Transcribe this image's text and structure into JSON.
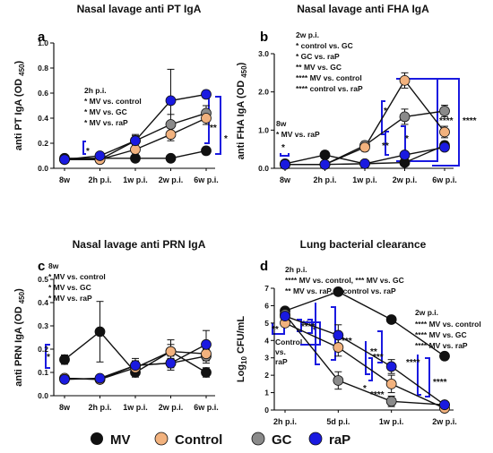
{
  "legend": [
    {
      "name": "MV",
      "color": "#111111"
    },
    {
      "name": "Control",
      "color": "#f2b27e"
    },
    {
      "name": "GC",
      "color": "#8a8a8a"
    },
    {
      "name": "raP",
      "color": "#1a1ae0"
    }
  ],
  "colors": {
    "bracket": "#1a1ae0"
  },
  "chart_data": [
    {
      "type": "line",
      "panel": "a",
      "title": "Nasal lavage anti PT IgA",
      "ylabel": "anti PT IgA (OD 450)",
      "ylim": [
        0,
        1.0
      ],
      "yticks": [
        "0.0",
        "0.2",
        "0.4",
        "0.6",
        "0.8",
        "1.0"
      ],
      "categories": [
        "8w",
        "2h p.i.",
        "1w p.i.",
        "2w p.i.",
        "6w p.i."
      ],
      "series": [
        {
          "name": "MV",
          "values": [
            0.08,
            0.08,
            0.08,
            0.08,
            0.14
          ],
          "err": [
            0.01,
            0.01,
            0.01,
            0.01,
            0.03
          ]
        },
        {
          "name": "Control",
          "values": [
            0.07,
            0.07,
            0.15,
            0.27,
            0.4
          ],
          "err": [
            0.01,
            0.01,
            0.03,
            0.05,
            0.05
          ]
        },
        {
          "name": "GC",
          "values": [
            0.07,
            0.07,
            0.22,
            0.35,
            0.44
          ],
          "err": [
            0.01,
            0.01,
            0.05,
            0.08,
            0.06
          ]
        },
        {
          "name": "raP",
          "values": [
            0.07,
            0.1,
            0.22,
            0.54,
            0.59
          ],
          "err": [
            0.01,
            0.02,
            0.04,
            0.25,
            0.03
          ]
        }
      ],
      "annotations": [
        "2h p.i.",
        "* MV vs. control",
        "* MV vs. GC",
        "* MV vs. raP"
      ],
      "significance": [
        "*",
        "**",
        "*"
      ]
    },
    {
      "type": "line",
      "panel": "b",
      "title": "Nasal lavage anti FHA IgA",
      "ylabel": "anti FHA IgA (OD 450)",
      "ylim": [
        0,
        3.0
      ],
      "yticks": [
        "0.0",
        "1.0",
        "2.0",
        "3.0"
      ],
      "categories": [
        "8w",
        "2h p.i.",
        "1w p.i.",
        "2w p.i.",
        "6w p.i."
      ],
      "series": [
        {
          "name": "MV",
          "values": [
            0.12,
            0.35,
            0.12,
            0.15,
            0.6
          ],
          "err": [
            0.02,
            0.1,
            0.02,
            0.03,
            0.1
          ]
        },
        {
          "name": "Control",
          "values": [
            0.1,
            0.1,
            0.55,
            2.3,
            0.95
          ],
          "err": [
            0.02,
            0.02,
            0.1,
            0.2,
            0.15
          ]
        },
        {
          "name": "GC",
          "values": [
            0.1,
            0.1,
            0.6,
            1.35,
            1.5
          ],
          "err": [
            0.02,
            0.02,
            0.1,
            0.2,
            0.15
          ]
        },
        {
          "name": "raP",
          "values": [
            0.1,
            0.1,
            0.12,
            0.35,
            0.55
          ],
          "err": [
            0.02,
            0.02,
            0.02,
            0.05,
            0.05
          ]
        }
      ],
      "annotations": [
        "2w p.i.",
        "* control vs. GC",
        "* GC vs. raP",
        "** MV vs. GC",
        "**** MV vs. control",
        "**** control vs. raP",
        "8w",
        "* MV vs. raP"
      ],
      "significance": [
        "*",
        "*",
        "**",
        "*",
        "****",
        "****"
      ]
    },
    {
      "type": "line",
      "panel": "c",
      "title": "Nasal lavage anti PRN IgA",
      "ylabel": "anti PRN IgA (OD 450)",
      "ylim": [
        0,
        0.5
      ],
      "yticks": [
        "0.0",
        "0.1",
        "0.2",
        "0.3",
        "0.4",
        "0.5"
      ],
      "categories": [
        "8w",
        "2h p.i.",
        "1w p.i.",
        "2w p.i.",
        "6w p.i."
      ],
      "series": [
        {
          "name": "MV",
          "values": [
            0.155,
            0.275,
            0.1,
            0.19,
            0.1
          ],
          "err": [
            0.02,
            0.13,
            0.02,
            0.05,
            0.02
          ]
        },
        {
          "name": "Control",
          "values": [
            0.075,
            0.07,
            0.12,
            0.19,
            0.18
          ],
          "err": [
            0.01,
            0.01,
            0.03,
            0.03,
            0.03
          ]
        },
        {
          "name": "GC",
          "values": [
            0.075,
            0.07,
            0.13,
            0.14,
            0.17
          ],
          "err": [
            0.01,
            0.01,
            0.03,
            0.03,
            0.03
          ]
        },
        {
          "name": "raP",
          "values": [
            0.07,
            0.075,
            0.13,
            0.14,
            0.22
          ],
          "err": [
            0.01,
            0.01,
            0.02,
            0.02,
            0.06
          ]
        }
      ],
      "annotations": [
        "8w",
        "* MV vs. control",
        "* MV vs. GC",
        "* MV vs. raP"
      ],
      "significance": [
        "*"
      ]
    },
    {
      "type": "line",
      "panel": "d",
      "title": "Lung bacterial clearance",
      "ylabel": "Log10 CFU/mL",
      "ylim": [
        0,
        7
      ],
      "yticks": [
        "0",
        "1",
        "2",
        "3",
        "4",
        "5",
        "6",
        "7"
      ],
      "categories": [
        "2h p.i.",
        "5d p.i.",
        "1w p.i.",
        "2w p.i."
      ],
      "series": [
        {
          "name": "MV",
          "values": [
            5.7,
            6.8,
            5.2,
            3.1
          ],
          "err": [
            0.1,
            0.1,
            0.1,
            0.2
          ]
        },
        {
          "name": "Control",
          "values": [
            5.0,
            3.6,
            1.5,
            0.1
          ],
          "err": [
            0.1,
            0.5,
            0.5,
            0.1
          ]
        },
        {
          "name": "GC",
          "values": [
            5.5,
            1.7,
            0.5,
            0.3
          ],
          "err": [
            0.1,
            0.5,
            0.3,
            0.1
          ]
        },
        {
          "name": "raP",
          "values": [
            5.4,
            4.3,
            2.5,
            0.3
          ],
          "err": [
            0.1,
            0.6,
            0.4,
            0.1
          ]
        }
      ],
      "annotations": [
        "2h p.i.",
        "**** MV vs. control, *** MV vs. GC",
        "** MV vs. raP,  ** control vs. raP",
        "2w p.i.",
        "**** MV vs. control",
        "**** MV vs. GC",
        "**** MV vs. raP",
        "Control",
        "vs.",
        "raP"
      ],
      "significance": [
        "**",
        "**",
        "*",
        "****",
        "***",
        "***",
        "**",
        "****",
        "*",
        "****",
        "****"
      ]
    }
  ]
}
